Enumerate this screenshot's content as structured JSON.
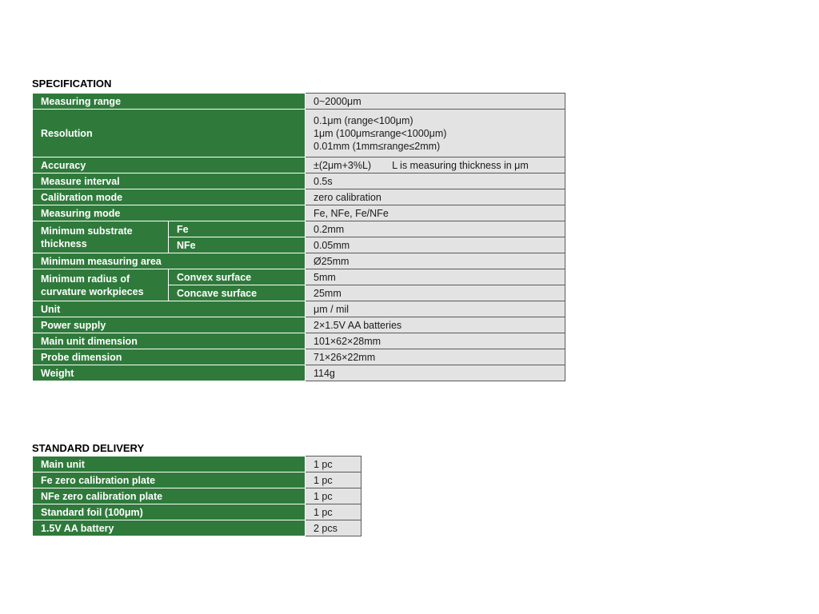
{
  "specification": {
    "title": "SPECIFICATION",
    "rows": [
      {
        "label": "Measuring range",
        "value": "0~2000μm"
      },
      {
        "label": "Resolution",
        "lines": [
          "0.1μm (range<100μm)",
          "1μm (100μm≤range<1000μm)",
          "0.01mm (1mm≤range≤2mm)"
        ]
      },
      {
        "label": "Accuracy",
        "value": "±(2μm+3%L)",
        "note": "L is measuring thickness in μm"
      },
      {
        "label": "Measure interval",
        "value": "0.5s"
      },
      {
        "label": "Calibration mode",
        "value": "zero calibration"
      },
      {
        "label": "Measuring mode",
        "value": "Fe, NFe, Fe/NFe"
      },
      {
        "label": "Minimum substrate thickness",
        "sub": [
          {
            "label": "Fe",
            "value": "0.2mm"
          },
          {
            "label": "NFe",
            "value": "0.05mm"
          }
        ]
      },
      {
        "label": "Minimum measuring area",
        "value": "Ø25mm"
      },
      {
        "label": "Minimum radius of curvature workpieces",
        "sub": [
          {
            "label": "Convex surface",
            "value": "5mm"
          },
          {
            "label": "Concave surface",
            "value": "25mm"
          }
        ]
      },
      {
        "label": "Unit",
        "value": "μm / mil"
      },
      {
        "label": "Power supply",
        "value": "2×1.5V AA batteries"
      },
      {
        "label": "Main unit dimension",
        "value": "101×62×28mm"
      },
      {
        "label": "Probe dimension",
        "value": "71×26×22mm"
      },
      {
        "label": "Weight",
        "value": "114g"
      }
    ]
  },
  "delivery": {
    "title": "STANDARD DELIVERY",
    "rows": [
      {
        "label": "Main unit",
        "value": "1 pc"
      },
      {
        "label": "Fe zero calibration plate",
        "value": "1 pc"
      },
      {
        "label": "NFe zero calibration plate",
        "value": "1 pc"
      },
      {
        "label": "Standard foil (100μm)",
        "value": "1 pc"
      },
      {
        "label": "1.5V AA battery",
        "value": "2 pcs"
      }
    ]
  },
  "colors": {
    "label_bg": "#2f7a3b",
    "value_bg": "#e3e3e3",
    "border": "#5a5a5a"
  }
}
